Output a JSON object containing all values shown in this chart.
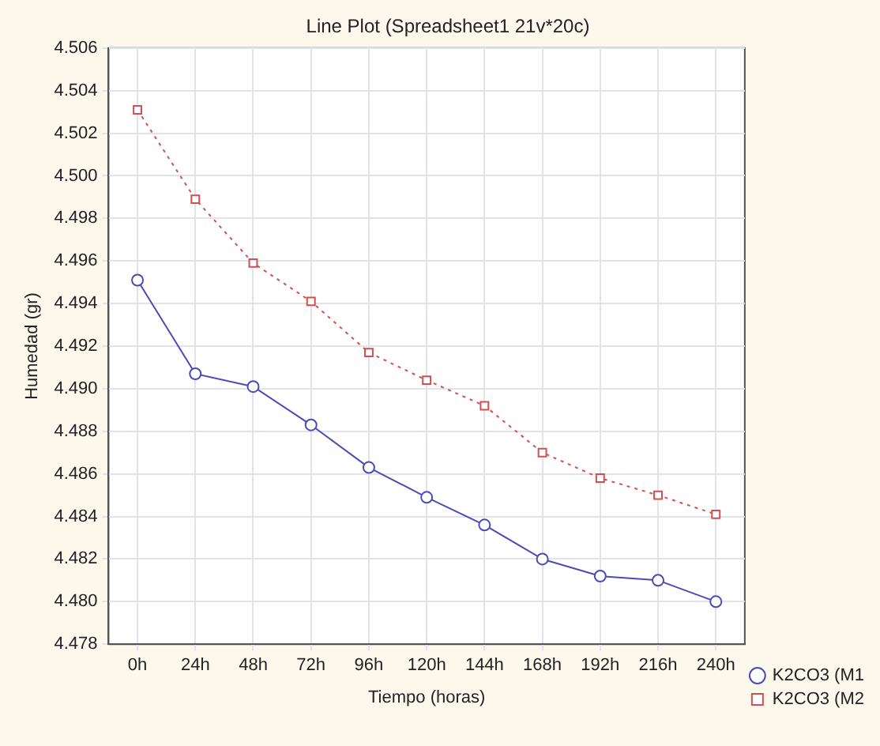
{
  "chart_data": {
    "type": "line",
    "title": "Line Plot (Spreadsheet1 21v*20c)",
    "xlabel": "Tiempo (horas)",
    "ylabel": "Humedad (gr)",
    "categories": [
      "0h",
      "24h",
      "48h",
      "72h",
      "96h",
      "120h",
      "144h",
      "168h",
      "192h",
      "216h",
      "240h"
    ],
    "series": [
      {
        "name": "K2CO3 (M1",
        "color": "#4b4bb5",
        "marker": "circle",
        "line_style": "solid",
        "values": [
          4.4951,
          4.4907,
          4.4901,
          4.4883,
          4.4863,
          4.4849,
          4.4836,
          4.482,
          4.4812,
          4.481,
          4.48
        ]
      },
      {
        "name": "K2CO3 (M2",
        "color": "#d05050",
        "marker": "square",
        "line_style": "dotted",
        "values": [
          4.5031,
          4.4989,
          4.4959,
          4.4941,
          4.4917,
          4.4904,
          4.4892,
          4.487,
          4.4858,
          4.485,
          4.4841
        ]
      }
    ],
    "ylim": [
      4.478,
      4.506
    ],
    "yticks": [
      4.478,
      {
        "value": 4.48,
        "label": "4.480"
      },
      4.482,
      4.484,
      4.486,
      4.488,
      {
        "value": 4.49,
        "label": "4.490"
      },
      4.492,
      4.494,
      4.496,
      4.498,
      {
        "value": 4.5,
        "label": "4.500"
      },
      4.502,
      4.504,
      4.506
    ],
    "grid": true,
    "legend": "bottom right"
  }
}
